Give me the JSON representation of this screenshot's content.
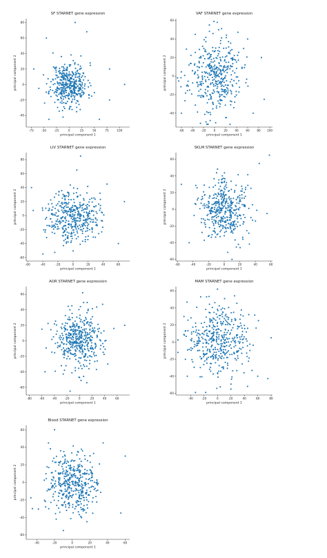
{
  "chart_data": [
    {
      "type": "scatter",
      "title": "SF STARNET gene expression",
      "xlabel": "principal component 1",
      "ylabel": "principal component 2",
      "xlim": [
        -85,
        120
      ],
      "ylim": [
        -55,
        85
      ],
      "xticks": [
        -75,
        -50,
        -25,
        0,
        25,
        50,
        75,
        100
      ],
      "yticks": [
        -40,
        -20,
        0,
        20,
        40,
        60,
        80
      ],
      "n_points": 420,
      "spread": [
        18,
        14
      ],
      "outliers": [
        [
          12,
          80
        ],
        [
          -45,
          60
        ],
        [
          35,
          68
        ],
        [
          60,
          -45
        ],
        [
          80,
          -20
        ],
        [
          110,
          0
        ],
        [
          80,
          20
        ],
        [
          -60,
          -5
        ],
        [
          -70,
          20
        ],
        [
          -40,
          -45
        ]
      ],
      "seed": 11
    },
    {
      "type": "scatter",
      "title": "VAF STARNET gene expression",
      "xlabel": "principal component 1",
      "ylabel": "principal component 2",
      "xlim": [
        -70,
        105
      ],
      "ylim": [
        -55,
        62
      ],
      "xticks": [
        -60,
        -40,
        -20,
        0,
        20,
        40,
        60,
        80,
        100
      ],
      "yticks": [
        -40,
        -20,
        0,
        20,
        40,
        60
      ],
      "n_points": 400,
      "spread": [
        24,
        20
      ],
      "outliers": [
        [
          5,
          58
        ],
        [
          -35,
          45
        ],
        [
          60,
          40
        ],
        [
          90,
          -25
        ],
        [
          -60,
          -40
        ],
        [
          70,
          -40
        ],
        [
          85,
          20
        ]
      ],
      "seed": 23
    },
    {
      "type": "scatter",
      "title": "LIV STARNET gene expression",
      "xlabel": "principal component 1",
      "ylabel": "principal component 2",
      "xlim": [
        -62,
        75
      ],
      "ylim": [
        -65,
        90
      ],
      "xticks": [
        -60,
        -40,
        -20,
        0,
        20,
        40,
        60
      ],
      "yticks": [
        -60,
        -40,
        -20,
        0,
        20,
        40,
        60,
        80
      ],
      "n_points": 420,
      "spread": [
        17,
        18
      ],
      "outliers": [
        [
          10,
          85
        ],
        [
          -55,
          40
        ],
        [
          68,
          20
        ],
        [
          60,
          -40
        ],
        [
          -40,
          -55
        ],
        [
          5,
          65
        ],
        [
          45,
          45
        ]
      ],
      "seed": 37
    },
    {
      "type": "scatter",
      "title": "SKLM STARNET gene expression",
      "xlabel": "principal component 1",
      "ylabel": "principal component 2",
      "xlim": [
        -62,
        62
      ],
      "ylim": [
        -62,
        68
      ],
      "xticks": [
        -60,
        -40,
        -20,
        0,
        20,
        40,
        60
      ],
      "yticks": [
        -60,
        -40,
        -20,
        0,
        20,
        40,
        60
      ],
      "n_points": 420,
      "spread": [
        16,
        18
      ],
      "outliers": [
        [
          58,
          65
        ],
        [
          -55,
          30
        ],
        [
          45,
          55
        ],
        [
          -45,
          -40
        ],
        [
          55,
          -5
        ],
        [
          10,
          -60
        ]
      ],
      "seed": 41
    },
    {
      "type": "scatter",
      "title": "AOR STARNET gene expression",
      "xlabel": "principal component 1",
      "ylabel": "principal component 2",
      "xlim": [
        -85,
        80
      ],
      "ylim": [
        -70,
        70
      ],
      "xticks": [
        -80,
        -60,
        -40,
        -20,
        0,
        20,
        40,
        60
      ],
      "yticks": [
        -60,
        -40,
        -20,
        0,
        20,
        40,
        60
      ],
      "n_points": 440,
      "spread": [
        20,
        18
      ],
      "outliers": [
        [
          72,
          20
        ],
        [
          -60,
          15
        ],
        [
          5,
          62
        ],
        [
          -15,
          -65
        ],
        [
          45,
          -30
        ],
        [
          -55,
          -40
        ]
      ],
      "seed": 53
    },
    {
      "type": "scatter",
      "title": "MAM STARNET gene expression",
      "xlabel": "principal component 1",
      "ylabel": "principal component 2",
      "xlim": [
        -62,
        82
      ],
      "ylim": [
        -62,
        65
      ],
      "xticks": [
        -40,
        -20,
        0,
        20,
        40,
        60,
        80
      ],
      "yticks": [
        -60,
        -40,
        -20,
        0,
        20,
        40,
        60
      ],
      "n_points": 430,
      "spread": [
        22,
        20
      ],
      "outliers": [
        [
          80,
          5
        ],
        [
          60,
          -40
        ],
        [
          -50,
          30
        ],
        [
          0,
          62
        ],
        [
          20,
          -55
        ],
        [
          -45,
          -40
        ]
      ],
      "seed": 67
    },
    {
      "type": "scatter",
      "title": "Blood STARNET gene expression",
      "xlabel": "principal component 1",
      "ylabel": "principal component 2",
      "xlim": [
        -52,
        65
      ],
      "ylim": [
        -65,
        65
      ],
      "xticks": [
        -40,
        -20,
        0,
        20,
        40,
        60
      ],
      "yticks": [
        -60,
        -40,
        -20,
        0,
        20,
        40,
        60
      ],
      "n_points": 430,
      "spread": [
        15,
        17
      ],
      "outliers": [
        [
          -20,
          60
        ],
        [
          60,
          30
        ],
        [
          -45,
          -30
        ],
        [
          55,
          -35
        ],
        [
          -10,
          -55
        ],
        [
          35,
          45
        ]
      ],
      "seed": 79
    }
  ]
}
